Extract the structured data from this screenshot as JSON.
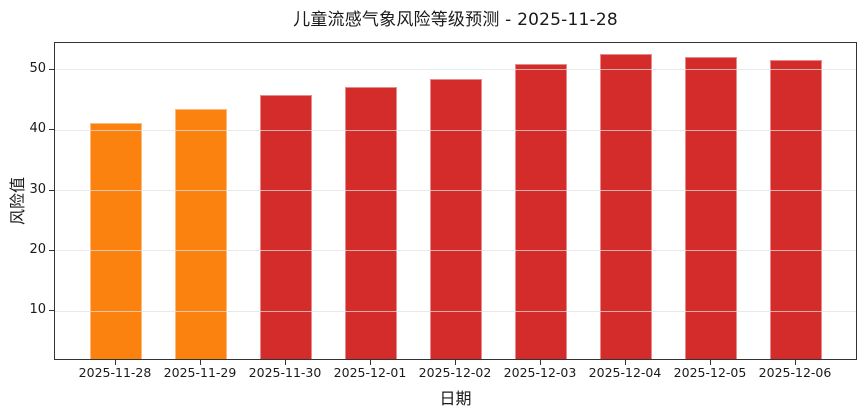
{
  "chart_data": {
    "type": "bar",
    "title": "儿童流感气象风险等级预测 - 2025-11-28",
    "xlabel": "日期",
    "ylabel": "风险值",
    "categories": [
      "2025-11-28",
      "2025-11-29",
      "2025-11-30",
      "2025-12-01",
      "2025-12-02",
      "2025-12-03",
      "2025-12-04",
      "2025-12-05",
      "2025-12-06"
    ],
    "values": [
      40.8,
      43.1,
      45.4,
      46.8,
      48.1,
      50.6,
      52.2,
      51.7,
      51.3
    ],
    "bar_colors": [
      "#fc8210",
      "#fc8210",
      "#d42b2b",
      "#d42b2b",
      "#d42b2b",
      "#d42b2b",
      "#d42b2b",
      "#d42b2b",
      "#d42b2b"
    ],
    "yticks": [
      10,
      20,
      30,
      40,
      50
    ],
    "ylim": [
      1.8,
      54.4
    ],
    "grid": "horizontal",
    "legend": "none",
    "colors": {
      "orange": "#fc8210",
      "red": "#d42b2b",
      "spine": "#333333",
      "gridline": "#e1e1e1",
      "text": "#1a1a1a",
      "background": "#ffffff"
    }
  }
}
